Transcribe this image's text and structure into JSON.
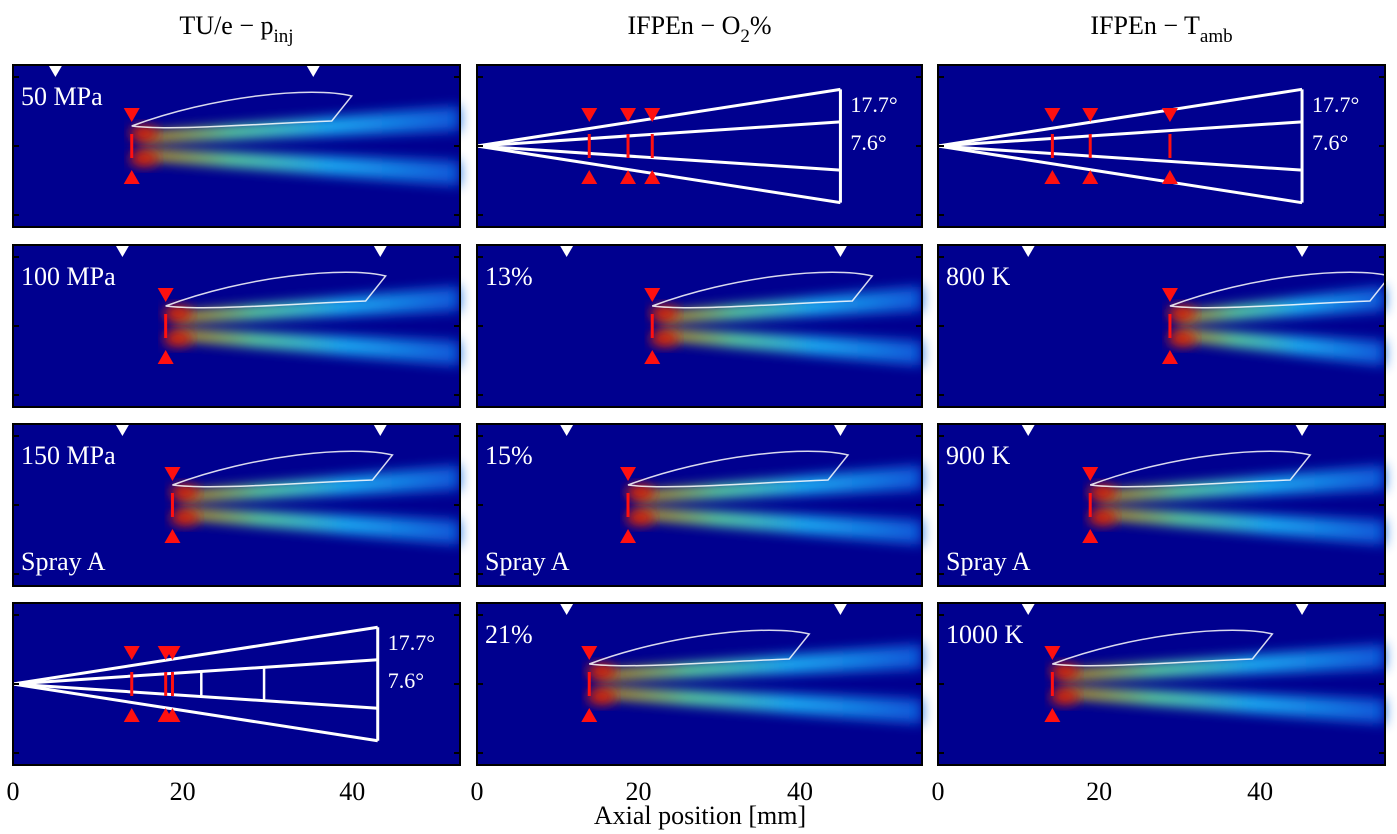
{
  "x_label": "Axial position [mm]",
  "columns": [
    {
      "title": "TU/e − p",
      "title_sub": "inj",
      "xlim": [
        0,
        52.7
      ],
      "xticks": [
        0,
        20,
        40
      ],
      "panels": [
        {
          "kind": "image",
          "label": "50 MPa",
          "red_markers_mm": [
            14
          ],
          "white_markers_mm": [
            5,
            35.4
          ]
        },
        {
          "kind": "image",
          "label": "100 MPa",
          "red_markers_mm": [
            18
          ],
          "white_markers_mm": [
            12.9,
            43.3
          ]
        },
        {
          "kind": "image",
          "label": "150 MPa",
          "note": "Spray A",
          "red_markers_mm": [
            18.8
          ],
          "white_markers_mm": [
            12.9,
            43.3
          ]
        },
        {
          "kind": "schematic",
          "cone_end_mm": 43,
          "angles": [
            {
              "value": 17.7,
              "label": "17.7°"
            },
            {
              "value": 7.6,
              "label": "7.6°"
            }
          ],
          "red_markers_mm": [
            14,
            18,
            18.8
          ],
          "chords_mm": [
            22.2,
            29.6
          ]
        }
      ]
    },
    {
      "title": "IFPEn − O",
      "title_sub": "2",
      "title_after": "%",
      "xlim": [
        0,
        55.1
      ],
      "xticks": [
        0,
        20,
        40
      ],
      "panels": [
        {
          "kind": "schematic",
          "cone_end_mm": 45,
          "angles": [
            {
              "value": 17.7,
              "label": "17.7°"
            },
            {
              "value": 7.6,
              "label": "7.6°"
            }
          ],
          "red_markers_mm": [
            13.9,
            18.7,
            21.7
          ]
        },
        {
          "kind": "image",
          "label": "13%",
          "red_markers_mm": [
            21.7
          ],
          "white_markers_mm": [
            11.1,
            45
          ]
        },
        {
          "kind": "image",
          "label": "15%",
          "note": "Spray A",
          "red_markers_mm": [
            18.7
          ],
          "white_markers_mm": [
            11.1,
            45
          ]
        },
        {
          "kind": "image",
          "label": "21%",
          "red_markers_mm": [
            13.9
          ],
          "white_markers_mm": [
            11.1,
            45
          ]
        }
      ]
    },
    {
      "title": "IFPEn − T",
      "title_sub": "amb",
      "xlim": [
        0,
        55.5
      ],
      "xticks": [
        0,
        20,
        40
      ],
      "panels": [
        {
          "kind": "schematic",
          "cone_end_mm": 45.2,
          "angles": [
            {
              "value": 17.7,
              "label": "17.7°"
            },
            {
              "value": 7.6,
              "label": "7.6°"
            }
          ],
          "red_markers_mm": [
            14.2,
            18.9,
            28.8
          ]
        },
        {
          "kind": "image",
          "label": "800 K",
          "red_markers_mm": [
            28.8
          ],
          "white_markers_mm": [
            11.2,
            45.2
          ]
        },
        {
          "kind": "image",
          "label": "900 K",
          "note": "Spray A",
          "red_markers_mm": [
            18.9
          ],
          "white_markers_mm": [
            11.2,
            45.2
          ]
        },
        {
          "kind": "image",
          "label": "1000 K",
          "red_markers_mm": [
            14.2
          ],
          "white_markers_mm": [
            11.2,
            45.2
          ]
        }
      ]
    }
  ]
}
